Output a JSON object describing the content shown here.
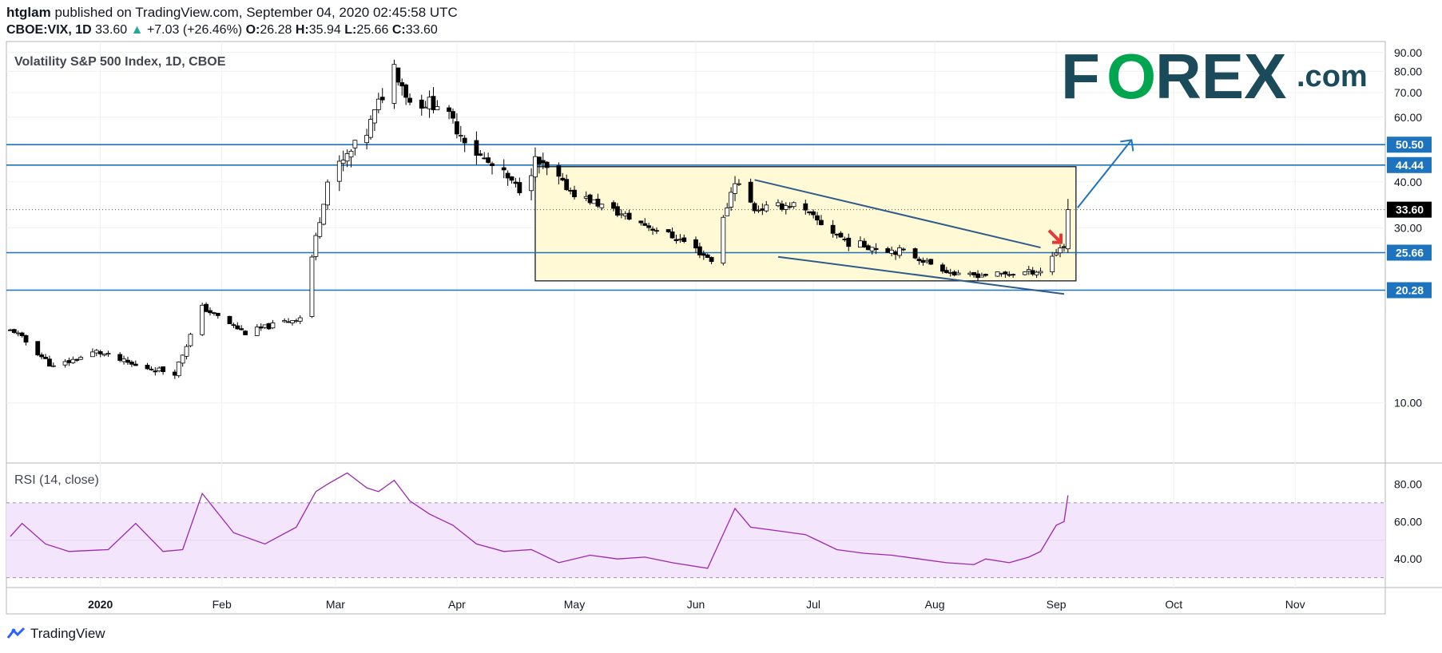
{
  "header": {
    "publisher": "htglam",
    "published_text": "published on TradingView.com, September 04, 2020 02:45:58 UTC",
    "symbol": "CBOE:VIX, 1D",
    "last": "33.60",
    "change_arrow": "▲",
    "change": "+7.03 (+26.46%)",
    "o_label": "O:",
    "o_value": "26.28",
    "h_label": "H:",
    "h_value": "35.94",
    "l_label": "L:",
    "l_value": "25.66",
    "c_label": "C:",
    "c_value": "33.60"
  },
  "chart_title": "Volatility S&P 500 Index, 1D, CBOE",
  "rsi_title": "RSI (14, close)",
  "logo": {
    "left": "F",
    "ring": "O",
    "right": "REX",
    "suffix": ".com",
    "color_dark": "#1b4b5a",
    "color_green": "#00a550"
  },
  "footer": {
    "brand": "TradingView"
  },
  "colors": {
    "up_fill": "#ffffff",
    "down_fill": "#000000",
    "level_line": "#1e73be",
    "box_fill": "#fff9d6",
    "rsi_line": "#9c27b0",
    "rsi_band": "#f3e5fb",
    "arrow_red": "#e53935"
  },
  "chart_data": [
    {
      "type": "candlestick",
      "y_axis": {
        "ticks": [
          "90.00",
          "80.00",
          "70.00",
          "60.00",
          "40.00",
          "30.00",
          "10.00"
        ],
        "scale": "log",
        "range": [
          7,
          95
        ]
      },
      "x_axis": {
        "ticks": [
          "2020",
          "Feb",
          "Mar",
          "Apr",
          "May",
          "Jun",
          "Jul",
          "Aug",
          "Sep",
          "Oct",
          "Nov"
        ]
      },
      "price_labels": [
        {
          "value": 50.5,
          "text": "50.50",
          "kind": "level"
        },
        {
          "value": 44.44,
          "text": "44.44",
          "kind": "level"
        },
        {
          "value": 33.6,
          "text": "33.60",
          "kind": "last"
        },
        {
          "value": 25.66,
          "text": "25.66",
          "kind": "level"
        },
        {
          "value": 20.28,
          "text": "20.28",
          "kind": "level"
        }
      ],
      "consolidation_box": {
        "x_start": "2020-04-21",
        "x_end": "2020-09-04",
        "y_low": 21.5,
        "y_high": 44.0
      },
      "trendlines": [
        {
          "from": [
            "2020-06-16",
            40.5
          ],
          "to": [
            "2020-08-28",
            26.5
          ]
        },
        {
          "from": [
            "2020-06-22",
            25.0
          ],
          "to": [
            "2020-09-03",
            19.8
          ]
        }
      ],
      "projection_arrow": {
        "from": [
          "2020-09-04",
          34.0
        ],
        "to": [
          "2020-09-19",
          52.0
        ]
      },
      "anchors": [
        {
          "date": "2019-12-10",
          "close": 15.7
        },
        {
          "date": "2019-12-20",
          "close": 12.5
        },
        {
          "date": "2019-12-31",
          "close": 13.8
        },
        {
          "date": "2020-01-10",
          "close": 12.6
        },
        {
          "date": "2020-01-20",
          "close": 12.1
        },
        {
          "date": "2020-01-27",
          "close": 18.2
        },
        {
          "date": "2020-02-07",
          "close": 15.5
        },
        {
          "date": "2020-02-21",
          "close": 17.1
        },
        {
          "date": "2020-02-24",
          "close": 25.0
        },
        {
          "date": "2020-02-28",
          "close": 40.1
        },
        {
          "date": "2020-03-09",
          "close": 54.5
        },
        {
          "date": "2020-03-16",
          "close": 82.7
        },
        {
          "date": "2020-03-20",
          "close": 66.0
        },
        {
          "date": "2020-03-27",
          "close": 65.5
        },
        {
          "date": "2020-04-07",
          "close": 46.7
        },
        {
          "date": "2020-04-17",
          "close": 38.2
        },
        {
          "date": "2020-04-21",
          "close": 45.4
        },
        {
          "date": "2020-05-01",
          "close": 37.2
        },
        {
          "date": "2020-05-15",
          "close": 31.9
        },
        {
          "date": "2020-05-29",
          "close": 27.5
        },
        {
          "date": "2020-06-05",
          "close": 24.5
        },
        {
          "date": "2020-06-11",
          "close": 40.8
        },
        {
          "date": "2020-06-16",
          "close": 33.7
        },
        {
          "date": "2020-06-26",
          "close": 34.7
        },
        {
          "date": "2020-07-10",
          "close": 27.3
        },
        {
          "date": "2020-07-24",
          "close": 25.8
        },
        {
          "date": "2020-08-07",
          "close": 22.2
        },
        {
          "date": "2020-08-21",
          "close": 22.5
        },
        {
          "date": "2020-08-28",
          "close": 22.9
        },
        {
          "date": "2020-09-02",
          "close": 26.6
        },
        {
          "date": "2020-09-03",
          "close": 26.6
        },
        {
          "date": "2020-09-04",
          "close": 33.6
        }
      ]
    },
    {
      "type": "line",
      "name": "RSI (14, close)",
      "y_axis": {
        "ticks": [
          "80.00",
          "60.00",
          "40.00"
        ],
        "range": [
          26,
          90
        ],
        "bands": [
          30,
          70
        ]
      },
      "x": [
        "2019-12-09",
        "2019-12-12",
        "2019-12-18",
        "2019-12-24",
        "2020-01-03",
        "2020-01-10",
        "2020-01-17",
        "2020-01-22",
        "2020-01-27",
        "2020-02-04",
        "2020-02-12",
        "2020-02-20",
        "2020-02-25",
        "2020-02-28",
        "2020-03-04",
        "2020-03-09",
        "2020-03-12",
        "2020-03-16",
        "2020-03-20",
        "2020-03-25",
        "2020-03-31",
        "2020-04-06",
        "2020-04-13",
        "2020-04-20",
        "2020-04-27",
        "2020-05-05",
        "2020-05-12",
        "2020-05-19",
        "2020-05-26",
        "2020-06-04",
        "2020-06-11",
        "2020-06-15",
        "2020-06-22",
        "2020-06-29",
        "2020-07-07",
        "2020-07-14",
        "2020-07-21",
        "2020-07-28",
        "2020-08-04",
        "2020-08-11",
        "2020-08-14",
        "2020-08-20",
        "2020-08-25",
        "2020-08-28",
        "2020-09-01",
        "2020-09-02",
        "2020-09-03",
        "2020-09-04"
      ],
      "values": [
        52,
        59,
        48,
        44,
        45,
        59,
        44,
        45,
        75,
        54,
        48,
        57,
        76,
        80,
        86,
        78,
        76,
        82,
        71,
        64,
        58,
        48,
        44,
        45,
        38,
        42,
        40,
        41,
        38,
        35,
        67,
        57,
        55,
        53,
        45,
        43,
        42,
        40,
        38,
        37,
        40,
        38,
        41,
        44,
        58,
        59,
        60,
        74
      ]
    }
  ]
}
